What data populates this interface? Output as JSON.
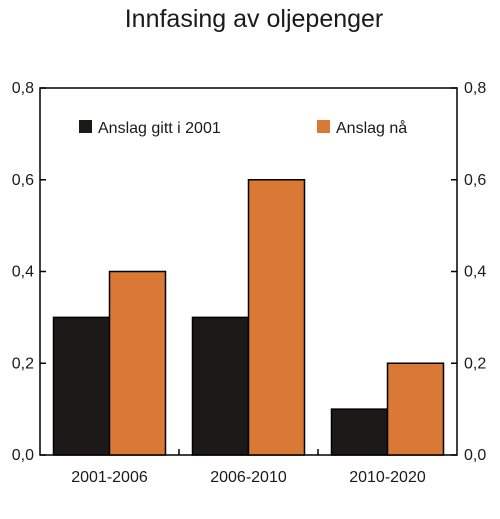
{
  "chart_data": {
    "type": "bar",
    "title": "Innfasing av oljepenger",
    "categories": [
      "2001-2006",
      "2006-2010",
      "2010-2020"
    ],
    "series": [
      {
        "name": "Anslag gitt i 2001",
        "values": [
          0.3,
          0.3,
          0.1
        ],
        "color": "#1c1a18"
      },
      {
        "name": "Anslag nå",
        "values": [
          0.4,
          0.6,
          0.2
        ],
        "color": "#d97935"
      }
    ],
    "ylim": [
      0.0,
      0.8
    ],
    "yticks": [
      0.0,
      0.2,
      0.4,
      0.6,
      0.8
    ],
    "ytick_labels": [
      "0,0",
      "0,2",
      "0,4",
      "0,6",
      "0,8"
    ],
    "right_axis_mirrored": true,
    "grid": false,
    "legend_position": "top"
  }
}
